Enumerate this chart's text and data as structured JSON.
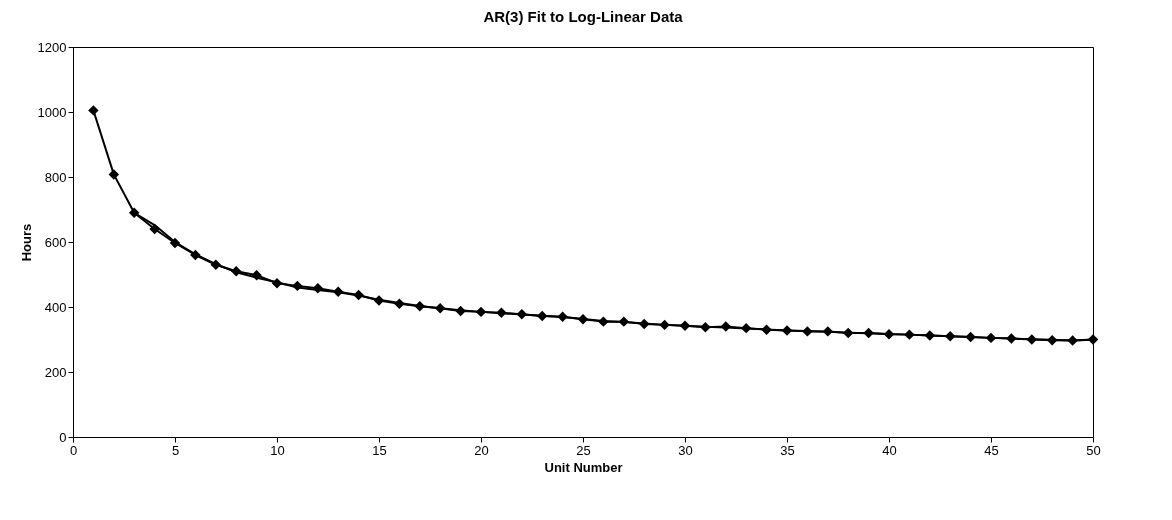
{
  "chart_data": {
    "type": "line",
    "title": "AR(3) Fit to Log-Linear Data",
    "xlabel": "Unit Number",
    "ylabel": "Hours",
    "xlim": [
      0,
      50
    ],
    "xticks": [
      0,
      5,
      10,
      15,
      20,
      25,
      30,
      35,
      40,
      45,
      50
    ],
    "ylim": [
      0,
      1200
    ],
    "yticks": [
      0,
      200,
      400,
      600,
      800,
      1000,
      1200
    ],
    "grid": false,
    "series": [
      {
        "color": "#000000",
        "marker": "diamond",
        "x": [
          1,
          2,
          3,
          4,
          5,
          6,
          7,
          8,
          9,
          10,
          11,
          12,
          13,
          14,
          15,
          16,
          17,
          18,
          19,
          20,
          21,
          22,
          23,
          24,
          25,
          26,
          27,
          28,
          29,
          30,
          31,
          32,
          33,
          34,
          35,
          36,
          37,
          38,
          39,
          40,
          41,
          42,
          43,
          44,
          45,
          46,
          47,
          48,
          49,
          50
        ],
        "values": [
          1005,
          808,
          690,
          640,
          597,
          560,
          530,
          510,
          498,
          473,
          465,
          458,
          447,
          437,
          420,
          410,
          402,
          396,
          388,
          385,
          382,
          378,
          372,
          370,
          362,
          355,
          355,
          348,
          345,
          342,
          338,
          340,
          335,
          330,
          328,
          325,
          325,
          320,
          320,
          316,
          315,
          312,
          310,
          308,
          305,
          303,
          300,
          298,
          297,
          300
        ]
      },
      {
        "color": "#000000",
        "marker": "none",
        "x": [
          3,
          4,
          5,
          6,
          7,
          8,
          9,
          10,
          11,
          12,
          13,
          14,
          15,
          16,
          17,
          18,
          19,
          20,
          21,
          22,
          23,
          24,
          25,
          26,
          27,
          28,
          29,
          30,
          31,
          32,
          33,
          34,
          35,
          36,
          37,
          38,
          39,
          40,
          41,
          42,
          43,
          44,
          45,
          46,
          47,
          48,
          49,
          50
        ],
        "values": [
          690,
          652,
          600,
          562,
          532,
          507,
          490,
          476,
          460,
          452,
          445,
          435,
          422,
          412,
          403,
          396,
          390,
          385,
          381,
          377,
          373,
          369,
          363,
          357,
          354,
          349,
          345,
          342,
          339,
          337,
          334,
          331,
          328,
          326,
          324,
          321,
          319,
          317,
          315,
          312,
          310,
          308,
          305,
          303,
          301,
          299,
          297,
          299
        ]
      }
    ]
  }
}
